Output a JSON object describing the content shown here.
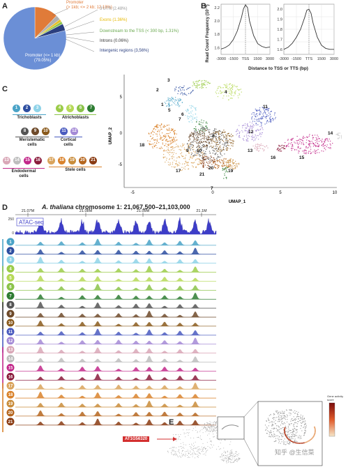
{
  "panel_a": {
    "letter": "A",
    "pie_labels": [
      {
        "text": "Promoter\n(> 1kb; <= 2 kb; 12.18%)",
        "color": "#e07b39"
      },
      {
        "text": "3'UTR (2.48%)",
        "color": "#9a9a9a"
      },
      {
        "text": "Exons (1.36%)",
        "color": "#e6b800"
      },
      {
        "text": "Downstream to the TSS (< 300 bp, 1.31%)",
        "color": "#6aa84f"
      },
      {
        "text": "Introns (0.06%)",
        "color": "#333333"
      },
      {
        "text": "Intergenic regions (3,56%)",
        "color": "#2b3f7f"
      },
      {
        "text": "Promoter (<= 1 kb)\n(79.05%)",
        "color": "#ffffff"
      }
    ],
    "chart_data": {
      "type": "pie",
      "slices": [
        {
          "label": "Promoter (<= 1 kb)",
          "value": 79.05,
          "color": "#6b8fd6"
        },
        {
          "label": "Promoter (> 1kb; <= 2 kb)",
          "value": 12.18,
          "color": "#e07b39"
        },
        {
          "label": "3'UTR",
          "value": 2.48,
          "color": "#b0b0b0"
        },
        {
          "label": "Exons",
          "value": 1.36,
          "color": "#e6c229"
        },
        {
          "label": "Downstream to the TSS (< 300 bp)",
          "value": 1.31,
          "color": "#8bc34a"
        },
        {
          "label": "Introns",
          "value": 0.06,
          "color": "#333333"
        },
        {
          "label": "Intergenic regions",
          "value": 3.56,
          "color": "#2b3f7f"
        }
      ]
    }
  },
  "panel_b": {
    "letter": "B",
    "ylabel": "Read Count Frequency (10⁻³)",
    "xlabel": "Distance to TSS or TTS (bp)",
    "left_yticks": [
      "2.2",
      "2.0",
      "1.8",
      "1.6"
    ],
    "right_yticks": [
      "2.0",
      "1.9",
      "1.8",
      "1.7",
      "1.6"
    ],
    "left_xticks": [
      "-3000",
      "-1500",
      "TSS",
      "1500",
      "3000"
    ],
    "right_xticks": [
      "-3000",
      "-1500",
      "TTS",
      "1500",
      "3000"
    ],
    "chart_data": [
      {
        "type": "line",
        "name": "TSS",
        "x": [
          -3000,
          -2500,
          -2000,
          -1500,
          -1000,
          -500,
          -250,
          0,
          250,
          500,
          1000,
          1500,
          2000,
          2500,
          3000
        ],
        "y": [
          1.58,
          1.6,
          1.64,
          1.72,
          1.85,
          2.05,
          2.18,
          2.24,
          2.2,
          2.0,
          1.78,
          1.66,
          1.62,
          1.6,
          1.61
        ],
        "ylim": [
          1.5,
          2.25
        ]
      },
      {
        "type": "line",
        "name": "TTS",
        "x": [
          -3000,
          -2500,
          -2000,
          -1500,
          -1000,
          -500,
          -250,
          0,
          250,
          500,
          1000,
          1500,
          2000,
          2500,
          3000
        ],
        "y": [
          1.6,
          1.62,
          1.66,
          1.72,
          1.8,
          1.92,
          1.99,
          2.0,
          1.96,
          1.86,
          1.72,
          1.64,
          1.61,
          1.6,
          1.6
        ],
        "ylim": [
          1.55,
          2.05
        ]
      }
    ]
  },
  "panel_c": {
    "letter": "C",
    "groups": [
      {
        "name": "Trichoblasts",
        "dots": [
          {
            "n": "1",
            "c": "#4aa3c7"
          },
          {
            "n": "2",
            "c": "#2d4ea0"
          },
          {
            "n": "3",
            "c": "#8fd3e8"
          }
        ]
      },
      {
        "name": "Atrichoblasts",
        "dots": [
          {
            "n": "4",
            "c": "#9ccc4a"
          },
          {
            "n": "5",
            "c": "#b6d957"
          },
          {
            "n": "6",
            "c": "#8bc34a"
          },
          {
            "n": "7",
            "c": "#2e7d32"
          }
        ]
      },
      {
        "name": "Meristematic\ncells",
        "dots": [
          {
            "n": "8",
            "c": "#555555"
          },
          {
            "n": "9",
            "c": "#6e4a2a"
          },
          {
            "n": "10",
            "c": "#8a5a1c"
          }
        ]
      },
      {
        "name": "Cortical\ncells",
        "dots": [
          {
            "n": "11",
            "c": "#4a5bbf"
          },
          {
            "n": "12",
            "c": "#a48ad6"
          }
        ]
      },
      {
        "name": "Endodermal\ncells",
        "dots": [
          {
            "n": "13",
            "c": "#d9a7b7"
          },
          {
            "n": "14",
            "c": "#bdbdbd"
          },
          {
            "n": "15",
            "c": "#c2288a"
          },
          {
            "n": "16",
            "c": "#8a1c3c"
          }
        ]
      },
      {
        "name": "Stele cells",
        "dots": [
          {
            "n": "17",
            "c": "#d9a35b"
          },
          {
            "n": "18",
            "c": "#d9822b"
          },
          {
            "n": "19",
            "c": "#c98c3a"
          },
          {
            "n": "20",
            "c": "#b5651d"
          },
          {
            "n": "21",
            "c": "#8a3b12"
          }
        ]
      }
    ],
    "umap": {
      "ylabel": "UMAP_2",
      "xlabel": "UMAP_1",
      "xticks": [
        "-5",
        "0",
        "5",
        "10"
      ],
      "yticks": [
        "5",
        "0",
        "-5"
      ],
      "cluster_labels": [
        "1",
        "2",
        "3",
        "4",
        "5",
        "6",
        "7",
        "8",
        "9",
        "10",
        "11",
        "12",
        "13",
        "14",
        "15",
        "16",
        "17",
        "18",
        "19",
        "20",
        "21",
        "7"
      ]
    }
  },
  "panel_d": {
    "letter": "D",
    "title_prefix": "A. thaliana",
    "title_suffix": " chromosome 1: 21,067,500–21,103,000",
    "scale_labels": [
      "21.07M",
      "21.08M",
      "21.09M",
      "21.1M"
    ],
    "atac_label": "ATAC-seq",
    "atac_ymax": "250",
    "atac_ymin": "0",
    "gene_label": "AT1G56320",
    "track_numbers": [
      "1",
      "2",
      "3",
      "4",
      "5",
      "6",
      "7",
      "8",
      "9",
      "10",
      "11",
      "12",
      "13",
      "14",
      "15",
      "16",
      "17",
      "18",
      "19",
      "20",
      "21"
    ]
  },
  "panel_e": {
    "letter": "E",
    "legend_title": "Gene activity\nscore"
  },
  "watermark": "知乎 @生信菜"
}
